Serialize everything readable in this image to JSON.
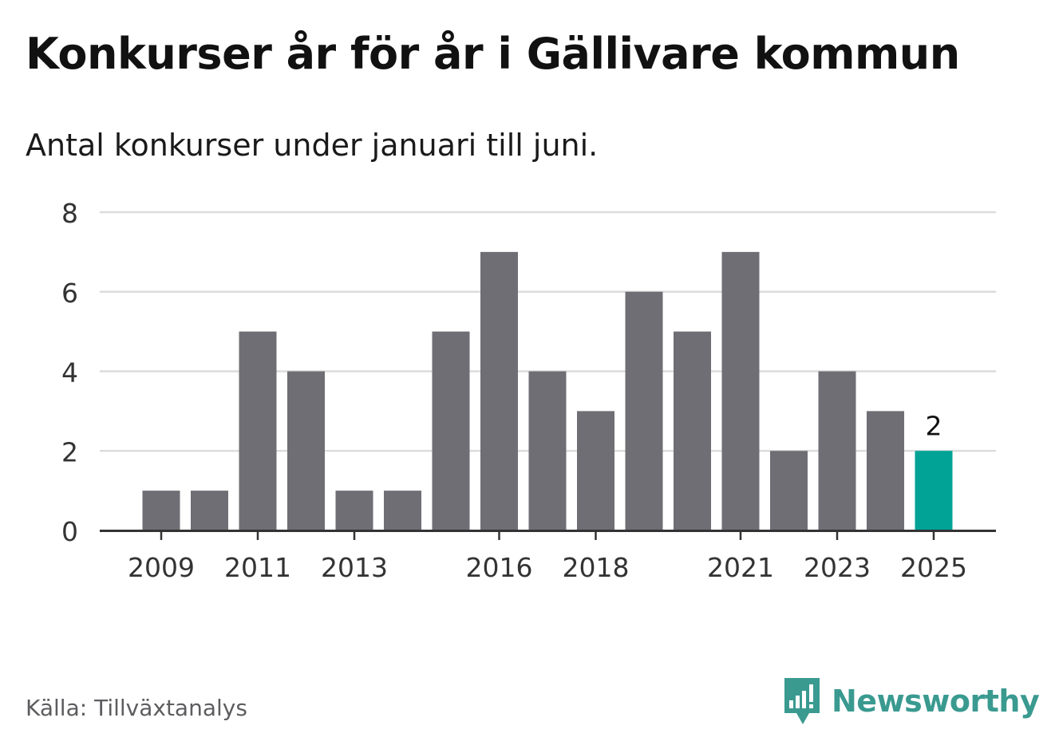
{
  "title": "Konkurser år för år i Gällivare kommun",
  "subtitle": "Antal konkurser under januari till juni.",
  "source": "Källa: Tillväxtanalys",
  "brand": {
    "name": "Newsworthy",
    "icon": "newsworthy-logo-icon",
    "color": "#3a9a90"
  },
  "colors": {
    "bar": "#6f6e74",
    "highlight": "#00a396",
    "grid": "#dcdcdc",
    "axis": "#333333"
  },
  "chart_data": {
    "type": "bar",
    "categories": [
      "2009",
      "2010",
      "2011",
      "2012",
      "2013",
      "2014",
      "2015",
      "2016",
      "2017",
      "2018",
      "2019",
      "2020",
      "2021",
      "2022",
      "2023",
      "2024",
      "2025"
    ],
    "values": [
      1,
      1,
      5,
      4,
      1,
      1,
      5,
      7,
      4,
      3,
      6,
      5,
      7,
      2,
      4,
      3,
      2
    ],
    "tick_labels": [
      "2009",
      "2011",
      "2013",
      "2016",
      "2018",
      "2021",
      "2023",
      "2025"
    ],
    "y_ticks": [
      0,
      2,
      4,
      6,
      8
    ],
    "ylim": [
      0,
      8
    ],
    "highlight_category": "2025",
    "data_labels": [
      {
        "category": "2025",
        "text": "2"
      }
    ],
    "xlabel": "",
    "ylabel": "",
    "grid": true
  }
}
